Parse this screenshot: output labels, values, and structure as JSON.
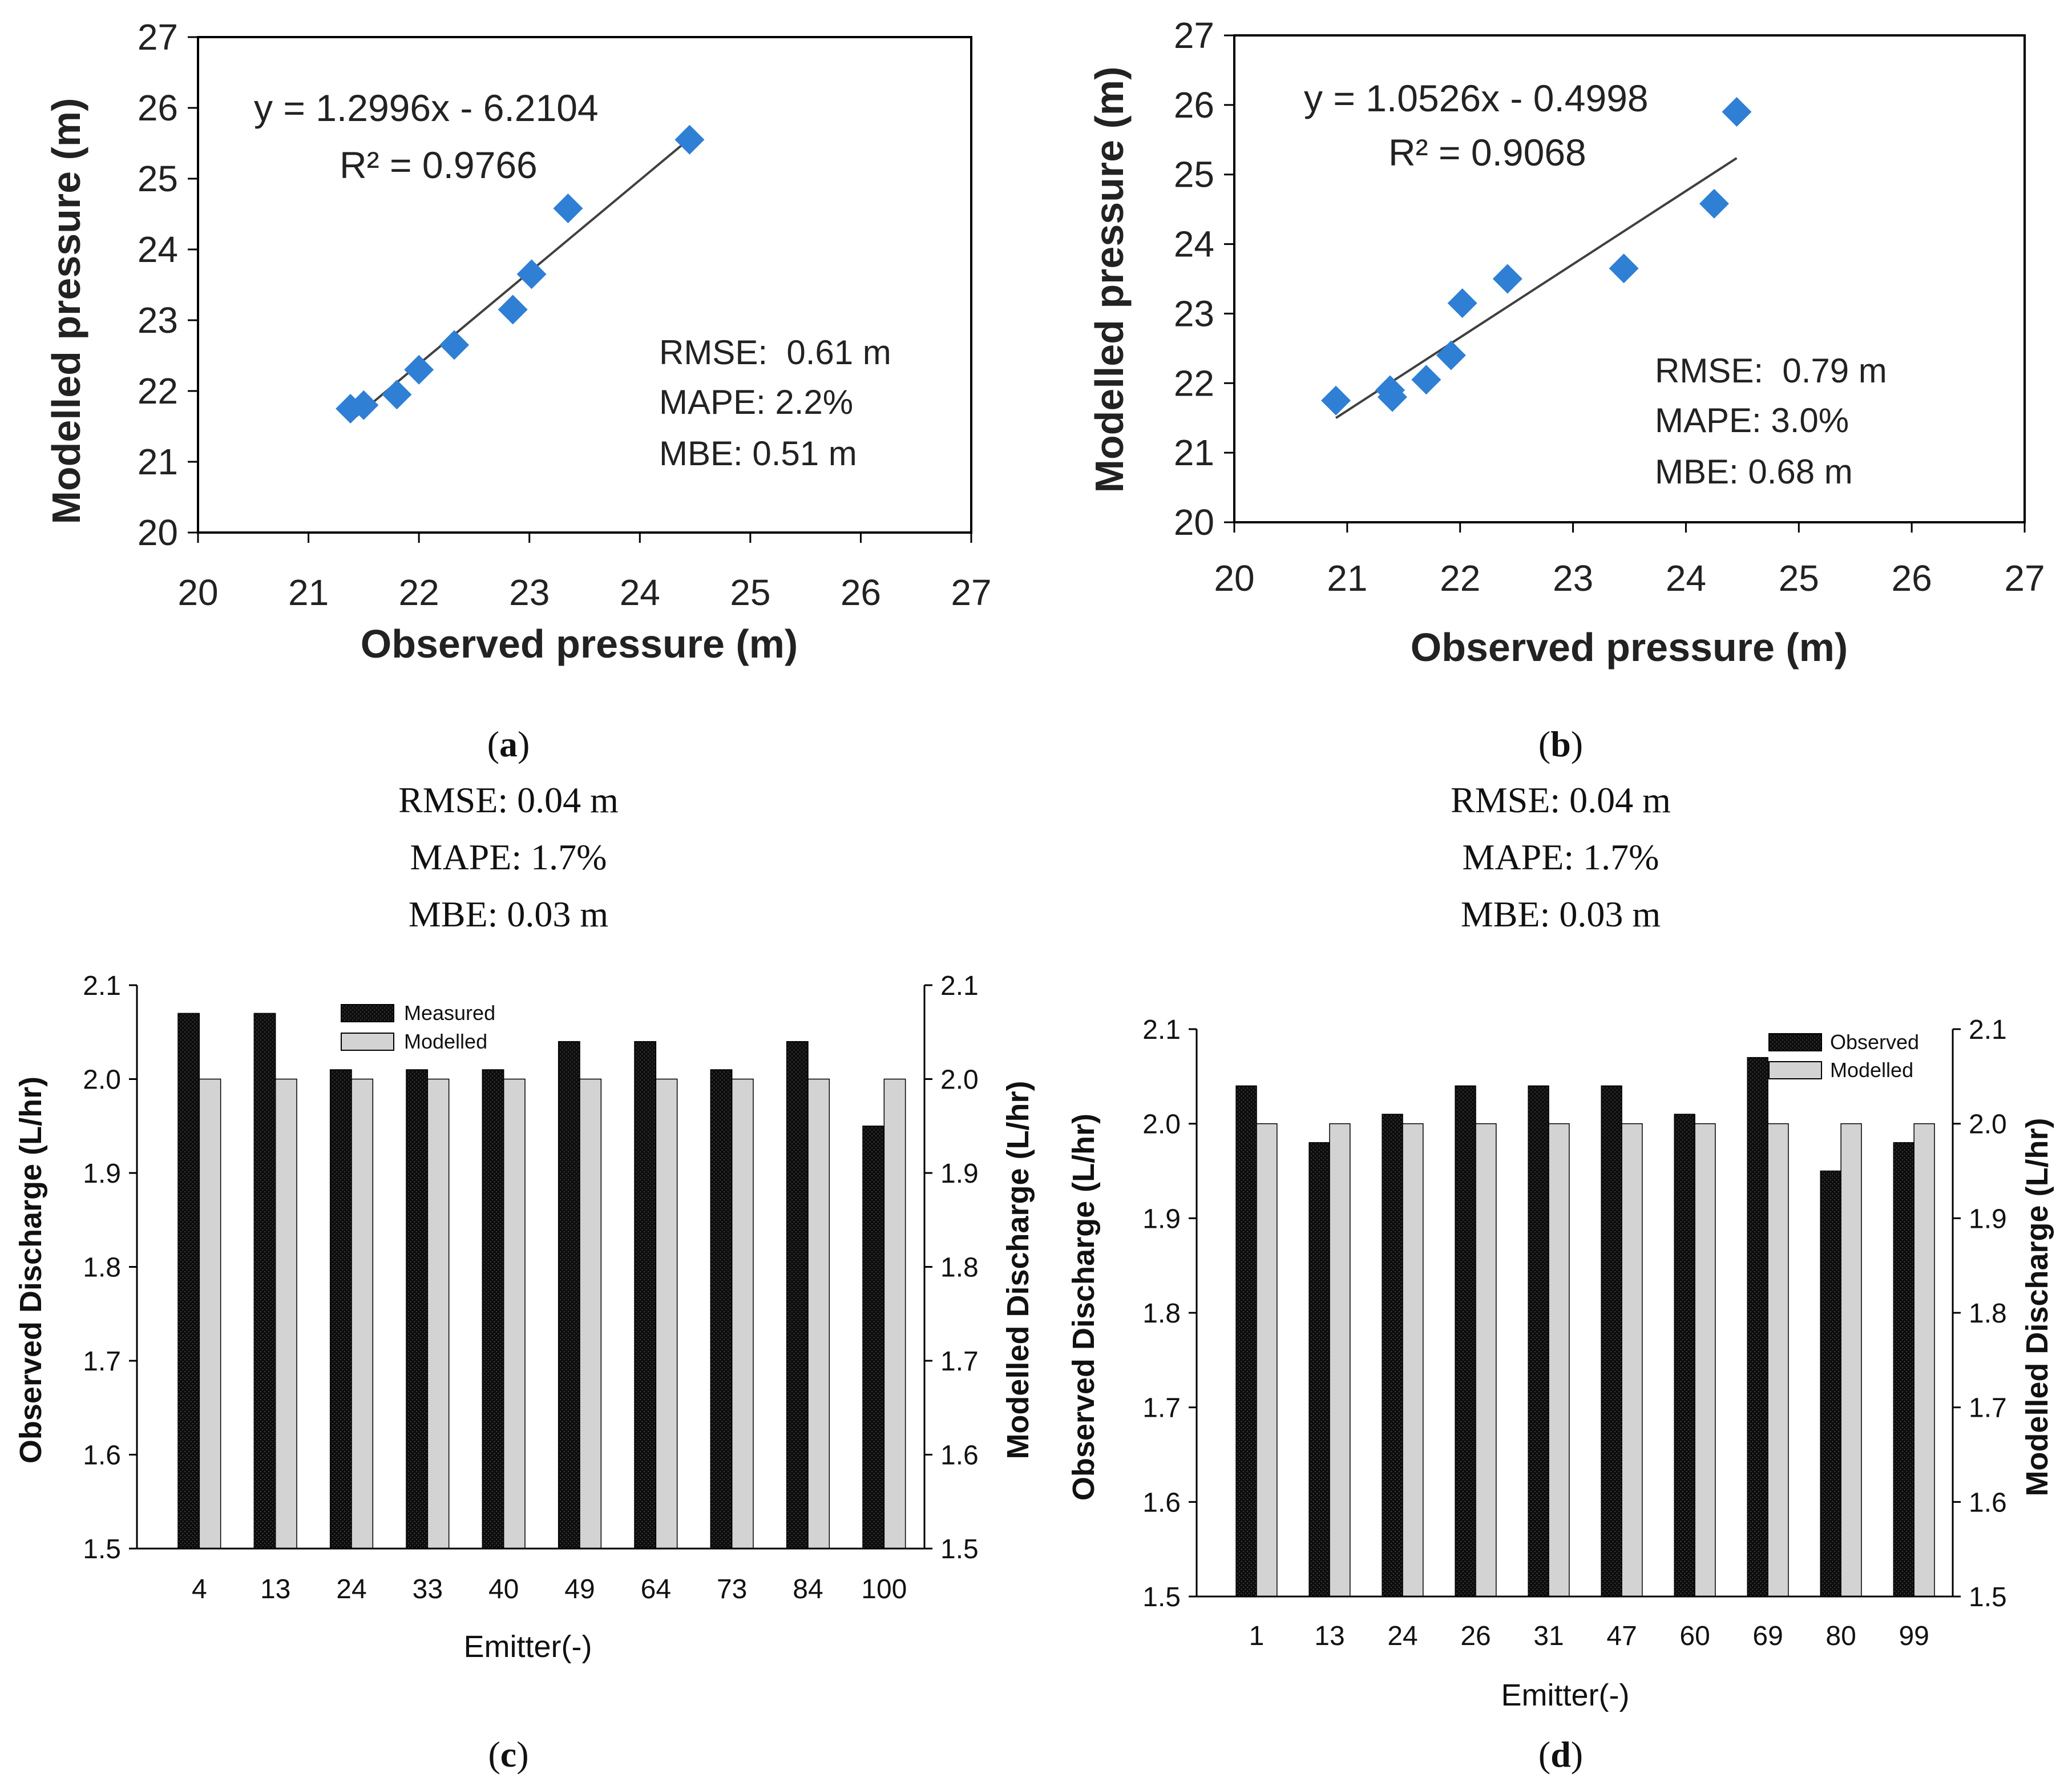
{
  "colors": {
    "marker": "#2f7fd4",
    "trend": "#404040",
    "bar_observed": "#0d0d0d",
    "bar_modelled": "#d3d3d3",
    "frame": "#000000"
  },
  "captions": {
    "a": {
      "open": "(",
      "letter": "a",
      "close": ")"
    },
    "b": {
      "open": "(",
      "letter": "b",
      "close": ")"
    },
    "c": {
      "open": "(",
      "letter": "c",
      "close": ")"
    },
    "d": {
      "open": "(",
      "letter": "d",
      "close": ")"
    }
  },
  "discharge_stats": {
    "c": [
      "RMSE: 0.04 m",
      "MAPE: 1.7%",
      "MBE: 0.03 m"
    ],
    "d": [
      "RMSE: 0.04 m",
      "MAPE: 1.7%",
      "MBE: 0.03 m"
    ]
  },
  "chart_data": [
    {
      "id": "a",
      "type": "scatter",
      "xlabel": "Observed pressure (m)",
      "ylabel": "Modelled pressure (m)",
      "xlim": [
        20,
        27
      ],
      "ylim": [
        20,
        27
      ],
      "ticks": [
        20,
        21,
        22,
        23,
        24,
        25,
        26,
        27
      ],
      "points": [
        [
          21.38,
          21.75
        ],
        [
          21.5,
          21.8
        ],
        [
          21.8,
          21.95
        ],
        [
          22.0,
          22.3
        ],
        [
          22.32,
          22.65
        ],
        [
          22.85,
          23.15
        ],
        [
          23.02,
          23.65
        ],
        [
          23.35,
          24.58
        ],
        [
          24.45,
          25.55
        ]
      ],
      "trendline": {
        "slope": 1.2996,
        "intercept": -6.2104,
        "x": [
          21.4,
          24.45
        ]
      },
      "equation": "y = 1.2996x - 6.2104",
      "r2": "R² = 0.9766",
      "stats": [
        "RMSE:  0.61 m",
        "MAPE: 2.2%",
        "MBE: 0.51 m"
      ]
    },
    {
      "id": "b",
      "type": "scatter",
      "xlabel": "Observed pressure (m)",
      "ylabel": "Modelled pressure (m)",
      "xlim": [
        20,
        27
      ],
      "ylim": [
        20,
        27
      ],
      "ticks": [
        20,
        21,
        22,
        23,
        24,
        25,
        26,
        27
      ],
      "points": [
        [
          20.9,
          21.75
        ],
        [
          21.38,
          21.9
        ],
        [
          21.4,
          21.8
        ],
        [
          21.7,
          22.05
        ],
        [
          21.92,
          22.4
        ],
        [
          22.02,
          23.15
        ],
        [
          22.42,
          23.5
        ],
        [
          23.45,
          23.65
        ],
        [
          24.25,
          24.58
        ],
        [
          24.45,
          25.9
        ]
      ],
      "trendline": {
        "slope": 1.0526,
        "intercept": -0.4998,
        "x": [
          20.9,
          24.45
        ]
      },
      "equation": "y = 1.0526x - 0.4998",
      "r2": "R² = 0.9068",
      "stats": [
        "RMSE:  0.79 m",
        "MAPE: 3.0%",
        "MBE: 0.68 m"
      ]
    },
    {
      "id": "c",
      "type": "bar",
      "categories": [
        "4",
        "13",
        "24",
        "33",
        "40",
        "49",
        "64",
        "73",
        "84",
        "100"
      ],
      "series": [
        {
          "name": "Measured",
          "values": [
            2.07,
            2.07,
            2.01,
            2.01,
            2.01,
            2.04,
            2.04,
            2.01,
            2.04,
            1.95
          ]
        },
        {
          "name": "Modelled",
          "values": [
            2.0,
            2.0,
            2.0,
            2.0,
            2.0,
            2.0,
            2.0,
            2.0,
            2.0,
            2.0
          ]
        }
      ],
      "xlabel": "Emitter(-)",
      "ylabel_left": "Observed Discharge (L/hr)",
      "ylabel_right": "Modelled Discharge (L/hr)",
      "ylim": [
        1.5,
        2.1
      ],
      "ticks": [
        "1.5",
        "1.6",
        "1.7",
        "1.8",
        "1.9",
        "2.0",
        "2.1"
      ],
      "legend": "top-center"
    },
    {
      "id": "d",
      "type": "bar",
      "categories": [
        "1",
        "13",
        "24",
        "26",
        "31",
        "47",
        "60",
        "69",
        "80",
        "99"
      ],
      "series": [
        {
          "name": "Observed",
          "values": [
            2.04,
            1.98,
            2.01,
            2.04,
            2.04,
            2.04,
            2.01,
            2.07,
            1.95,
            1.98
          ]
        },
        {
          "name": "Modelled",
          "values": [
            2.0,
            2.0,
            2.0,
            2.0,
            2.0,
            2.0,
            2.0,
            2.0,
            2.0,
            2.0
          ]
        }
      ],
      "xlabel": "Emitter(-)",
      "ylabel_left": "Observed Discharge (L/hr)",
      "ylabel_right": "Modelled Discharge (L/hr)",
      "ylim": [
        1.5,
        2.1
      ],
      "ticks": [
        "1.5",
        "1.6",
        "1.7",
        "1.8",
        "1.9",
        "2.0",
        "2.1"
      ],
      "legend": "top-right"
    }
  ]
}
